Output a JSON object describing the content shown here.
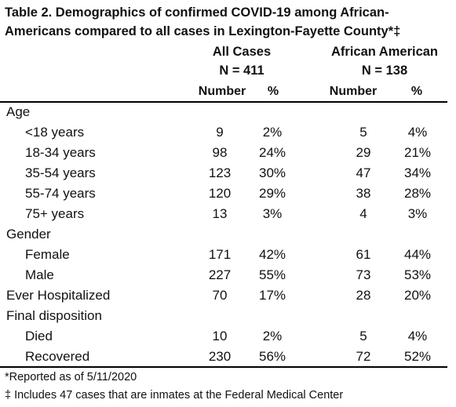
{
  "table": {
    "title": "Table 2. Demographics of confirmed COVID-19 among African-Americans compared to all cases in Lexington-Fayette County*‡",
    "groups": [
      {
        "name": "All Cases",
        "n": "N = 411"
      },
      {
        "name": "African American",
        "n": "N = 138"
      }
    ],
    "subheaders": [
      "Number",
      "%",
      "Number",
      "%"
    ],
    "rows": [
      {
        "label": "Age",
        "indent": false,
        "values": [
          "",
          "",
          "",
          ""
        ]
      },
      {
        "label": "<18 years",
        "indent": true,
        "values": [
          "9",
          "2%",
          "5",
          "4%"
        ]
      },
      {
        "label": "18-34 years",
        "indent": true,
        "values": [
          "98",
          "24%",
          "29",
          "21%"
        ]
      },
      {
        "label": "35-54 years",
        "indent": true,
        "values": [
          "123",
          "30%",
          "47",
          "34%"
        ]
      },
      {
        "label": "55-74 years",
        "indent": true,
        "values": [
          "120",
          "29%",
          "38",
          "28%"
        ]
      },
      {
        "label": "75+ years",
        "indent": true,
        "values": [
          "13",
          "3%",
          "4",
          "3%"
        ]
      },
      {
        "label": "Gender",
        "indent": false,
        "values": [
          "",
          "",
          "",
          ""
        ]
      },
      {
        "label": "Female",
        "indent": true,
        "values": [
          "171",
          "42%",
          "61",
          "44%"
        ]
      },
      {
        "label": "Male",
        "indent": true,
        "values": [
          "227",
          "55%",
          "73",
          "53%"
        ]
      },
      {
        "label": "Ever Hospitalized",
        "indent": false,
        "values": [
          "70",
          "17%",
          "28",
          "20%"
        ]
      },
      {
        "label": "Final disposition",
        "indent": false,
        "values": [
          "",
          "",
          "",
          ""
        ]
      },
      {
        "label": "Died",
        "indent": true,
        "values": [
          "10",
          "2%",
          "5",
          "4%"
        ]
      },
      {
        "label": "Recovered",
        "indent": true,
        "values": [
          "230",
          "56%",
          "72",
          "52%"
        ]
      }
    ],
    "footnotes": [
      "*Reported as of 5/11/2020",
      "‡ Includes 47 cases that are inmates at the Federal Medical Center"
    ]
  }
}
